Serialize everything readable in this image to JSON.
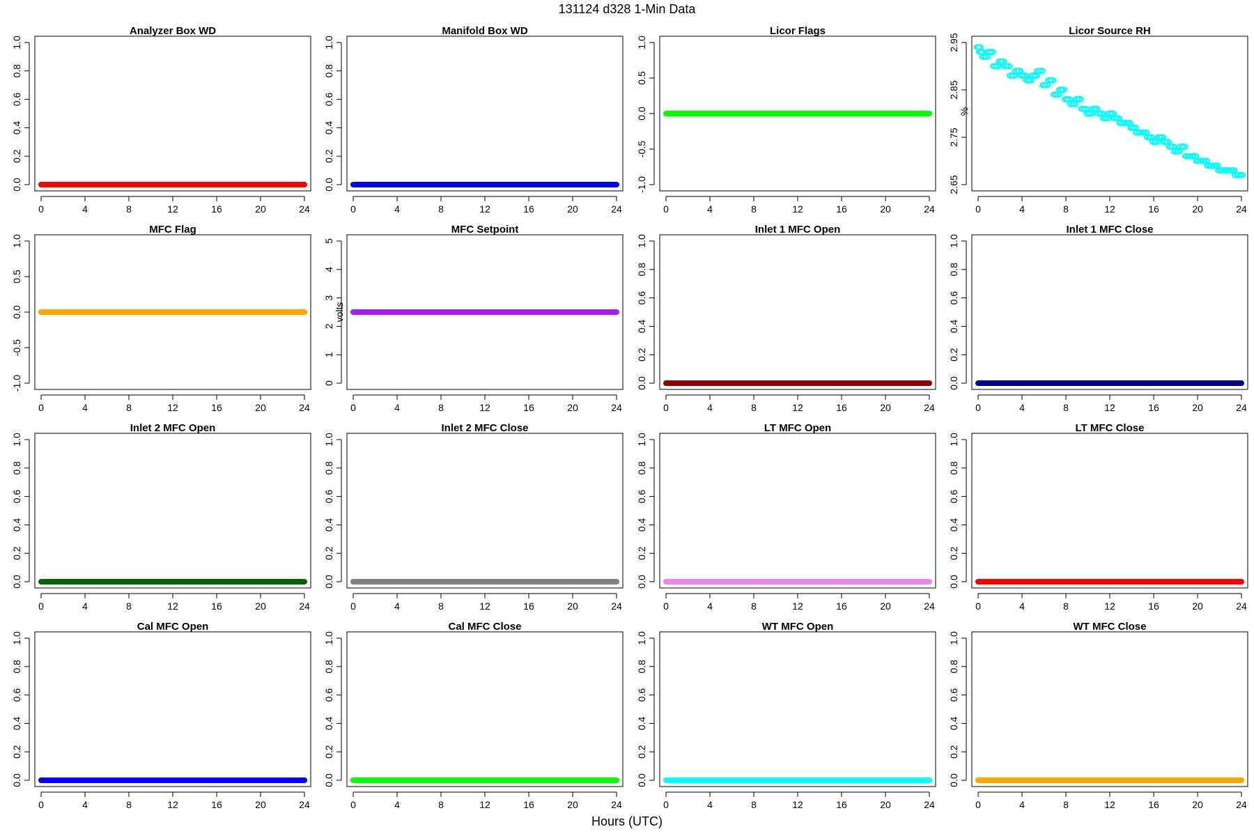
{
  "figure": {
    "title": "131124   d328   1-Min Data",
    "xlabel": "Hours (UTC)"
  },
  "chart_data": [
    {
      "type": "scatter",
      "title": "Analyzer Box WD",
      "ylabel": "",
      "xlim": [
        0,
        24
      ],
      "ylim": [
        0,
        1
      ],
      "xticks": [
        0,
        4,
        8,
        12,
        16,
        20,
        24
      ],
      "yticks": [
        0,
        0.2,
        0.4,
        0.6,
        0.8,
        1.0
      ],
      "ytick_labels": [
        "0.0",
        "0.2",
        "0.4",
        "0.6",
        "0.8",
        "1.0"
      ],
      "color": "#ff0000",
      "series": [
        {
          "x": [
            0,
            24
          ],
          "y": [
            0,
            0
          ]
        }
      ]
    },
    {
      "type": "scatter",
      "title": "Manifold Box WD",
      "ylabel": "",
      "xlim": [
        0,
        24
      ],
      "ylim": [
        0,
        1
      ],
      "xticks": [
        0,
        4,
        8,
        12,
        16,
        20,
        24
      ],
      "yticks": [
        0,
        0.2,
        0.4,
        0.6,
        0.8,
        1.0
      ],
      "ytick_labels": [
        "0.0",
        "0.2",
        "0.4",
        "0.6",
        "0.8",
        "1.0"
      ],
      "color": "#0000ff",
      "series": [
        {
          "x": [
            0,
            24
          ],
          "y": [
            0,
            0
          ]
        }
      ]
    },
    {
      "type": "scatter",
      "title": "Licor Flags",
      "ylabel": "",
      "xlim": [
        0,
        24
      ],
      "ylim": [
        -1,
        1
      ],
      "xticks": [
        0,
        4,
        8,
        12,
        16,
        20,
        24
      ],
      "yticks": [
        -1,
        -0.5,
        0,
        0.5,
        1
      ],
      "ytick_labels": [
        "-1.0",
        "-0.5",
        "0.0",
        "0.5",
        "1.0"
      ],
      "color": "#00ff00",
      "series": [
        {
          "x": [
            0,
            24
          ],
          "y": [
            0,
            0
          ]
        }
      ]
    },
    {
      "type": "scatter",
      "title": "Licor Source RH",
      "ylabel": "%",
      "xlim": [
        0,
        24
      ],
      "ylim": [
        2.65,
        2.95
      ],
      "xticks": [
        0,
        4,
        8,
        12,
        16,
        20,
        24
      ],
      "yticks": [
        2.65,
        2.75,
        2.85,
        2.95
      ],
      "ytick_labels": [
        "2.65",
        "2.75",
        "2.85",
        "2.95"
      ],
      "color": "#00ffff",
      "series": [
        {
          "x": [
            0,
            0.2,
            0.5,
            1,
            1.5,
            2,
            2.5,
            3,
            3.5,
            4,
            4.5,
            5,
            5.5,
            6,
            6.5,
            7,
            7.5,
            8,
            8.5,
            9,
            9.5,
            10,
            10.5,
            11,
            11.5,
            12,
            12.5,
            13,
            13.5,
            14,
            14.5,
            15,
            15.5,
            16,
            16.5,
            17,
            17.5,
            18,
            18.5,
            19,
            19.5,
            20,
            20.5,
            21,
            21.5,
            22,
            22.5,
            23,
            23.5,
            24
          ],
          "y": [
            2.94,
            2.93,
            2.92,
            2.93,
            2.9,
            2.91,
            2.9,
            2.88,
            2.89,
            2.88,
            2.87,
            2.88,
            2.89,
            2.86,
            2.87,
            2.84,
            2.85,
            2.83,
            2.82,
            2.83,
            2.81,
            2.8,
            2.81,
            2.8,
            2.79,
            2.8,
            2.79,
            2.78,
            2.78,
            2.77,
            2.76,
            2.76,
            2.75,
            2.74,
            2.75,
            2.74,
            2.73,
            2.72,
            2.73,
            2.71,
            2.71,
            2.7,
            2.7,
            2.69,
            2.69,
            2.68,
            2.68,
            2.68,
            2.67,
            2.67
          ]
        }
      ]
    },
    {
      "type": "scatter",
      "title": "MFC Flag",
      "ylabel": "",
      "xlim": [
        0,
        24
      ],
      "ylim": [
        -1,
        1
      ],
      "xticks": [
        0,
        4,
        8,
        12,
        16,
        20,
        24
      ],
      "yticks": [
        -1,
        -0.5,
        0,
        0.5,
        1
      ],
      "ytick_labels": [
        "-1.0",
        "-0.5",
        "0.0",
        "0.5",
        "1.0"
      ],
      "color": "#ffa500",
      "series": [
        {
          "x": [
            0,
            24
          ],
          "y": [
            0,
            0
          ]
        }
      ]
    },
    {
      "type": "scatter",
      "title": "MFC Setpoint",
      "ylabel": "volts",
      "xlim": [
        0,
        24
      ],
      "ylim": [
        0,
        5
      ],
      "xticks": [
        0,
        4,
        8,
        12,
        16,
        20,
        24
      ],
      "yticks": [
        0,
        1,
        2,
        3,
        4,
        5
      ],
      "ytick_labels": [
        "0",
        "1",
        "2",
        "3",
        "4",
        "5"
      ],
      "color": "#a020f0",
      "series": [
        {
          "x": [
            0,
            24
          ],
          "y": [
            2.5,
            2.5
          ]
        }
      ]
    },
    {
      "type": "scatter",
      "title": "Inlet 1 MFC Open",
      "ylabel": "",
      "xlim": [
        0,
        24
      ],
      "ylim": [
        0,
        1
      ],
      "xticks": [
        0,
        4,
        8,
        12,
        16,
        20,
        24
      ],
      "yticks": [
        0,
        0.2,
        0.4,
        0.6,
        0.8,
        1.0
      ],
      "ytick_labels": [
        "0.0",
        "0.2",
        "0.4",
        "0.6",
        "0.8",
        "1.0"
      ],
      "color": "#8b0000",
      "series": [
        {
          "x": [
            0,
            24
          ],
          "y": [
            0,
            0
          ]
        }
      ]
    },
    {
      "type": "scatter",
      "title": "Inlet 1 MFC Close",
      "ylabel": "",
      "xlim": [
        0,
        24
      ],
      "ylim": [
        0,
        1
      ],
      "xticks": [
        0,
        4,
        8,
        12,
        16,
        20,
        24
      ],
      "yticks": [
        0,
        0.2,
        0.4,
        0.6,
        0.8,
        1.0
      ],
      "ytick_labels": [
        "0.0",
        "0.2",
        "0.4",
        "0.6",
        "0.8",
        "1.0"
      ],
      "color": "#00008b",
      "series": [
        {
          "x": [
            0,
            24
          ],
          "y": [
            0,
            0
          ]
        }
      ]
    },
    {
      "type": "scatter",
      "title": "Inlet 2 MFC Open",
      "ylabel": "",
      "xlim": [
        0,
        24
      ],
      "ylim": [
        0,
        1
      ],
      "xticks": [
        0,
        4,
        8,
        12,
        16,
        20,
        24
      ],
      "yticks": [
        0,
        0.2,
        0.4,
        0.6,
        0.8,
        1.0
      ],
      "ytick_labels": [
        "0.0",
        "0.2",
        "0.4",
        "0.6",
        "0.8",
        "1.0"
      ],
      "color": "#006400",
      "series": [
        {
          "x": [
            0,
            24
          ],
          "y": [
            0,
            0
          ]
        }
      ]
    },
    {
      "type": "scatter",
      "title": "Inlet 2 MFC Close",
      "ylabel": "",
      "xlim": [
        0,
        24
      ],
      "ylim": [
        0,
        1
      ],
      "xticks": [
        0,
        4,
        8,
        12,
        16,
        20,
        24
      ],
      "yticks": [
        0,
        0.2,
        0.4,
        0.6,
        0.8,
        1.0
      ],
      "ytick_labels": [
        "0.0",
        "0.2",
        "0.4",
        "0.6",
        "0.8",
        "1.0"
      ],
      "color": "#808080",
      "series": [
        {
          "x": [
            0,
            24
          ],
          "y": [
            0,
            0
          ]
        }
      ]
    },
    {
      "type": "scatter",
      "title": "LT MFC Open",
      "ylabel": "",
      "xlim": [
        0,
        24
      ],
      "ylim": [
        0,
        1
      ],
      "xticks": [
        0,
        4,
        8,
        12,
        16,
        20,
        24
      ],
      "yticks": [
        0,
        0.2,
        0.4,
        0.6,
        0.8,
        1.0
      ],
      "ytick_labels": [
        "0.0",
        "0.2",
        "0.4",
        "0.6",
        "0.8",
        "1.0"
      ],
      "color": "#ee82ee",
      "series": [
        {
          "x": [
            0,
            24
          ],
          "y": [
            0,
            0
          ]
        }
      ]
    },
    {
      "type": "scatter",
      "title": "LT MFC Close",
      "ylabel": "",
      "xlim": [
        0,
        24
      ],
      "ylim": [
        0,
        1
      ],
      "xticks": [
        0,
        4,
        8,
        12,
        16,
        20,
        24
      ],
      "yticks": [
        0,
        0.2,
        0.4,
        0.6,
        0.8,
        1.0
      ],
      "ytick_labels": [
        "0.0",
        "0.2",
        "0.4",
        "0.6",
        "0.8",
        "1.0"
      ],
      "color": "#ff0000",
      "series": [
        {
          "x": [
            0,
            24
          ],
          "y": [
            0,
            0
          ]
        }
      ]
    },
    {
      "type": "scatter",
      "title": "Cal MFC Open",
      "ylabel": "",
      "xlim": [
        0,
        24
      ],
      "ylim": [
        0,
        1
      ],
      "xticks": [
        0,
        4,
        8,
        12,
        16,
        20,
        24
      ],
      "yticks": [
        0,
        0.2,
        0.4,
        0.6,
        0.8,
        1.0
      ],
      "ytick_labels": [
        "0.0",
        "0.2",
        "0.4",
        "0.6",
        "0.8",
        "1.0"
      ],
      "color": "#0000ff",
      "series": [
        {
          "x": [
            0,
            24
          ],
          "y": [
            0,
            0
          ]
        }
      ]
    },
    {
      "type": "scatter",
      "title": "Cal MFC Close",
      "ylabel": "",
      "xlim": [
        0,
        24
      ],
      "ylim": [
        0,
        1
      ],
      "xticks": [
        0,
        4,
        8,
        12,
        16,
        20,
        24
      ],
      "yticks": [
        0,
        0.2,
        0.4,
        0.6,
        0.8,
        1.0
      ],
      "ytick_labels": [
        "0.0",
        "0.2",
        "0.4",
        "0.6",
        "0.8",
        "1.0"
      ],
      "color": "#00ff00",
      "series": [
        {
          "x": [
            0,
            24
          ],
          "y": [
            0,
            0
          ]
        }
      ]
    },
    {
      "type": "scatter",
      "title": "WT MFC Open",
      "ylabel": "",
      "xlim": [
        0,
        24
      ],
      "ylim": [
        0,
        1
      ],
      "xticks": [
        0,
        4,
        8,
        12,
        16,
        20,
        24
      ],
      "yticks": [
        0,
        0.2,
        0.4,
        0.6,
        0.8,
        1.0
      ],
      "ytick_labels": [
        "0.0",
        "0.2",
        "0.4",
        "0.6",
        "0.8",
        "1.0"
      ],
      "color": "#00ffff",
      "series": [
        {
          "x": [
            0,
            24
          ],
          "y": [
            0,
            0
          ]
        }
      ]
    },
    {
      "type": "scatter",
      "title": "WT MFC Close",
      "ylabel": "",
      "xlim": [
        0,
        24
      ],
      "ylim": [
        0,
        1
      ],
      "xticks": [
        0,
        4,
        8,
        12,
        16,
        20,
        24
      ],
      "yticks": [
        0,
        0.2,
        0.4,
        0.6,
        0.8,
        1.0
      ],
      "ytick_labels": [
        "0.0",
        "0.2",
        "0.4",
        "0.6",
        "0.8",
        "1.0"
      ],
      "color": "#ffa500",
      "series": [
        {
          "x": [
            0,
            24
          ],
          "y": [
            0,
            0
          ]
        }
      ]
    }
  ]
}
